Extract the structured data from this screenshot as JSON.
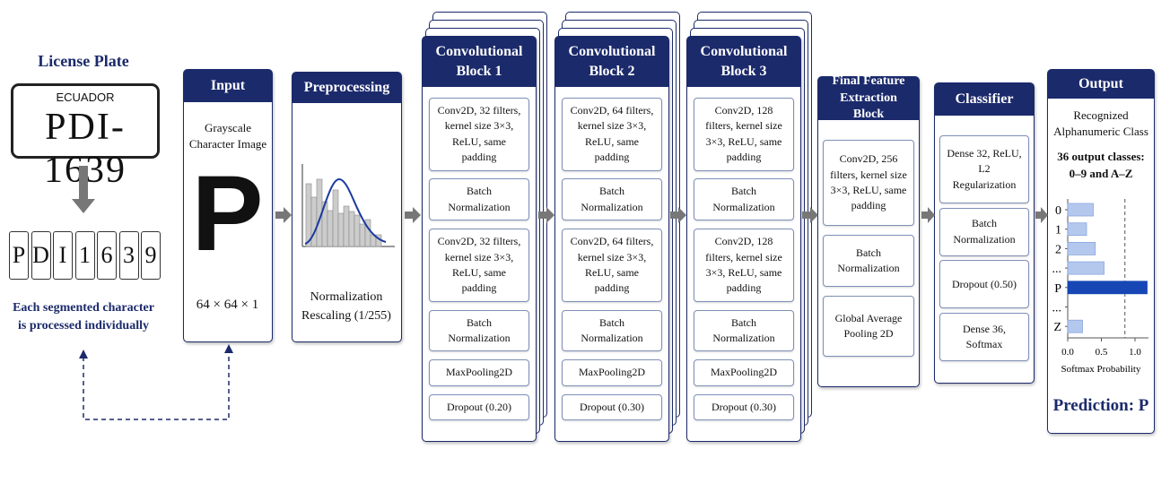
{
  "license_plate": {
    "title": "License Plate",
    "country": "ECUADOR",
    "number": "PDI-1639"
  },
  "segmented_characters": [
    "P",
    "D",
    "I",
    "1",
    "6",
    "3",
    "9"
  ],
  "segmentation_note": "Each segmented character is processed individually",
  "input": {
    "title": "Input",
    "description": "Grayscale Character Image",
    "glyph": "P",
    "shape": "64 × 64 × 1"
  },
  "preprocessing": {
    "title": "Preprocessing",
    "description": "Normalization Rescaling (1/255)"
  },
  "conv_blocks": [
    {
      "title": "Convolutional Block 1",
      "layers": [
        "Conv2D, 32 filters, kernel size 3×3, ReLU, same padding",
        "Batch Normalization",
        "Conv2D, 32 filters, kernel size 3×3, ReLU, same padding",
        "Batch Normalization",
        "MaxPooling2D",
        "Dropout (0.20)"
      ]
    },
    {
      "title": "Convolutional Block 2",
      "layers": [
        "Conv2D, 64 filters, kernel size 3×3, ReLU, same padding",
        "Batch Normalization",
        "Conv2D, 64 filters, kernel size 3×3, ReLU, same padding",
        "Batch Normalization",
        "MaxPooling2D",
        "Dropout (0.30)"
      ]
    },
    {
      "title": "Convolutional Block 3",
      "layers": [
        "Conv2D, 128 filters, kernel size 3×3, ReLU, same padding",
        "Batch Normalization",
        "Conv2D, 128 filters, kernel size 3×3, ReLU, same padding",
        "Batch Normalization",
        "MaxPooling2D",
        "Dropout (0.30)"
      ]
    }
  ],
  "final_block": {
    "title": "Final Feature Extraction Block",
    "layers": [
      "Conv2D, 256 filters, kernel size 3×3, ReLU, same padding",
      "Batch Normalization",
      "Global Average Pooling 2D"
    ]
  },
  "classifier": {
    "title": "Classifier",
    "layers": [
      "Dense 32, ReLU, L2 Regularization",
      "Batch Normalization",
      "Dropout (0.50)",
      "Dense 36, Softmax"
    ]
  },
  "output": {
    "title": "Output",
    "subtitle": "Recognized Alphanumeric Class",
    "classes_note": "36 output classes: 0–9 and A–Z",
    "chart": {
      "type": "bar",
      "categories": [
        "0",
        "1",
        "2",
        "...",
        "P",
        "...",
        "Z"
      ],
      "values": [
        0.38,
        0.28,
        0.41,
        0.54,
        1.18,
        null,
        0.22
      ],
      "xlim": [
        0,
        1.2
      ],
      "xticks": [
        {
          "value": 0,
          "label": "0.0"
        },
        {
          "value": 0.5,
          "label": "0.5"
        },
        {
          "value": 1,
          "label": "1.0"
        }
      ],
      "xlabel": "Softmax Probability",
      "reference_line": 0.85
    },
    "prediction": "Prediction: P"
  }
}
